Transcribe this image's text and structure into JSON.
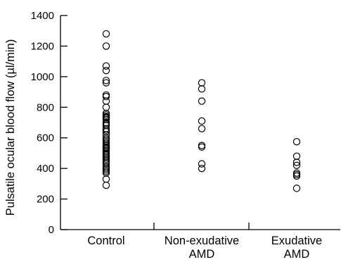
{
  "chart_data": {
    "type": "scatter",
    "title": "",
    "xlabel": "",
    "ylabel": "Pulsatile ocular blood flow (µl/min)",
    "ylim": [
      0,
      1400
    ],
    "yticks": [
      "0",
      "200",
      "400",
      "600",
      "800",
      "1000",
      "1200",
      "1400"
    ],
    "grid": false,
    "categories": [
      [
        "Control"
      ],
      [
        "Non-exudative",
        "AMD"
      ],
      [
        "Exudative",
        "AMD"
      ]
    ],
    "series": [
      {
        "category": "Control",
        "values": [
          1280,
          1200,
          1070,
          1040,
          975,
          960,
          880,
          870,
          840,
          800,
          760,
          750,
          740,
          735,
          730,
          720,
          700,
          690,
          680,
          660,
          650,
          640,
          620,
          600,
          590,
          580,
          570,
          560,
          550,
          540,
          535,
          530,
          520,
          510,
          500,
          490,
          480,
          470,
          460,
          450,
          440,
          430,
          410,
          400,
          390,
          380,
          370,
          330,
          290
        ]
      },
      {
        "category": "Non-exudative AMD",
        "values": [
          960,
          920,
          840,
          710,
          660,
          550,
          540,
          430,
          400
        ]
      },
      {
        "category": "Exudative AMD",
        "values": [
          575,
          480,
          440,
          420,
          370,
          360,
          350,
          270
        ]
      }
    ]
  }
}
